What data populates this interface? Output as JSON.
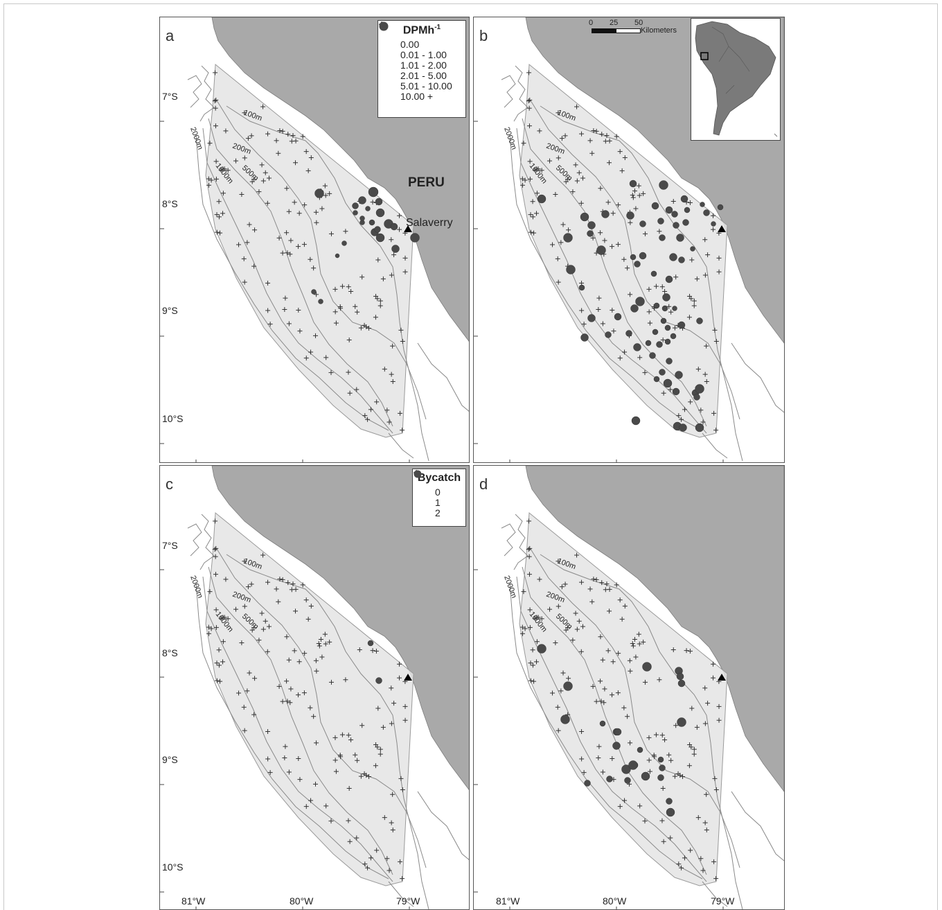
{
  "panels": [
    {
      "letter": "a",
      "peru_label": "PERU",
      "city_label": "Salaverry"
    },
    {
      "letter": "b"
    },
    {
      "letter": "c"
    },
    {
      "letter": "d"
    }
  ],
  "contour_labels": [
    "100m",
    "200m",
    "500m",
    "1000m",
    "2000m"
  ],
  "legend_dpm": {
    "title": "DPMh",
    "title_superscript": "-1",
    "items": [
      "0.00",
      "0.01 - 1.00",
      "1.01 - 2.00",
      "2.01 - 5.00",
      "5.01 - 10.00",
      "10.00 +"
    ]
  },
  "legend_bycatch": {
    "title": "Bycatch",
    "items": [
      "0",
      "1",
      "2"
    ]
  },
  "scale_bar": {
    "ticks": [
      "0",
      "25",
      "50"
    ],
    "unit": "Kilometers"
  },
  "latitude_labels": [
    "7°S",
    "8°S",
    "9°S",
    "10°S"
  ],
  "longitude_labels": [
    "81°W",
    "80°W",
    "79°W"
  ],
  "colors": {
    "land": "#a9a9a9",
    "survey_area": "#e4e4e4",
    "contour": "#8a8a8a",
    "symbol": "#4a4a4a"
  }
}
